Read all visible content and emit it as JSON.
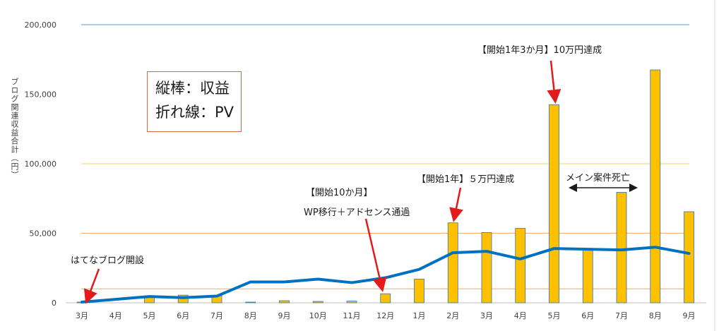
{
  "chart_data": {
    "type": "bar",
    "categories": [
      "3月",
      "4月",
      "5月",
      "6月",
      "7月",
      "8月",
      "9月",
      "10月",
      "11月",
      "12月",
      "1月",
      "2月",
      "3月",
      "4月",
      "5月",
      "6月",
      "7月",
      "8月",
      "9月"
    ],
    "series": [
      {
        "values": [
          500,
          0,
          4500,
          5500,
          5000,
          500,
          1500,
          1000,
          1200,
          6500,
          17000,
          57500,
          50500,
          53500,
          142500,
          38000,
          79500,
          167500,
          65500
        ],
        "color": "#ffc000"
      },
      {
        "values": [
          500,
          2500,
          4500,
          3700,
          4800,
          15000,
          15000,
          17000,
          14500,
          18000,
          24000,
          36000,
          37000,
          31500,
          39000,
          38500,
          38000,
          40000,
          35500
        ],
        "color": "#0070c0"
      }
    ],
    "ylabel": "ブログ関連収益合計（円）",
    "ylim": [
      0,
      200000
    ],
    "yticks": [
      "0",
      "50,000",
      "100,000",
      "150,000",
      "200,000"
    ],
    "reference_lines": [
      {
        "value": 10000,
        "color": "#f2a96e"
      },
      {
        "value": 50000,
        "color": "#f2a96e"
      },
      {
        "value": 100000,
        "color": "#f2d56e"
      },
      {
        "value": 200000,
        "color": "#5b9bd5"
      }
    ],
    "legend_box": {
      "line1": "縦棒：収益",
      "line2": "折れ線：PV"
    },
    "annotations": {
      "hatena": "はてなブログ開設",
      "wp_line1": "【開始10か月】",
      "wp_line2": "WP移行＋アドセンス通過",
      "year1": "【開始1年】５万円達成",
      "year1_3": "【開始1年3か月】10万円達成",
      "main_dead": "メイン案件死亡"
    }
  }
}
